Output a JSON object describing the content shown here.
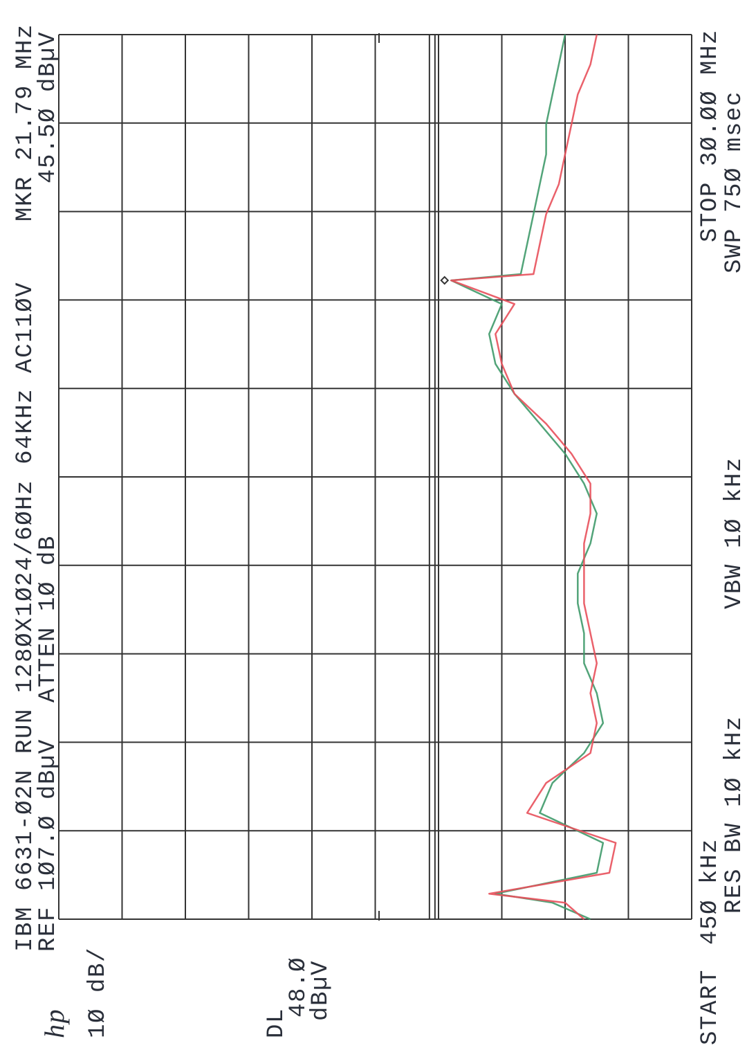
{
  "chart_data": {
    "type": "line",
    "logo": "hp",
    "header": {
      "line1": "IBM 6631-Ø2N RUN 128ØX1Ø24/6ØHz 64KHz AC11ØV",
      "ref": "REF 1Ø7.Ø dBµV",
      "atten": "ATTEN 1Ø dB",
      "scale": "1Ø dB/"
    },
    "marker": {
      "label": "MKR 21.79 MHz",
      "value_label": "45.5Ø dBµV",
      "x": 21.79,
      "value": 45.5
    },
    "display_line": {
      "label": "DL",
      "value_label": "48.Ø",
      "unit": "dBµV",
      "value": 48
    },
    "footer": {
      "start": "START",
      "start_value": "45Ø kHz",
      "stop": "STOP 3Ø.ØØ MHz",
      "res_bw": "RES BW 1Ø kHz",
      "vbw": "VBW 1Ø kHz",
      "sweep": "SWP 75Ø msec"
    },
    "xlim": [
      0.45,
      30
    ],
    "ylim": [
      7,
      107
    ],
    "x": [
      0.45,
      1,
      1.3,
      2,
      3,
      4,
      5,
      6,
      7,
      8,
      9,
      10,
      11,
      12,
      13,
      14,
      15,
      16,
      17,
      18,
      19,
      20,
      21,
      21.79,
      22,
      23,
      24,
      25,
      26,
      27,
      28,
      29,
      30
    ],
    "series": [
      {
        "color": "#3f9a6a",
        "values": [
          23,
          29,
          38,
          22,
          21,
          31,
          29,
          24,
          21,
          22,
          24,
          24,
          25,
          25,
          23,
          22,
          24,
          27,
          31,
          35,
          38,
          39,
          37,
          45,
          34,
          33,
          32,
          31,
          30,
          30,
          29,
          28,
          27
        ]
      },
      {
        "color": "#e8505b",
        "values": [
          24,
          27,
          39,
          20,
          19,
          33,
          30,
          23,
          22,
          23,
          22,
          23,
          24,
          24,
          24,
          23,
          23,
          26,
          30,
          35,
          37,
          38,
          35,
          45,
          32,
          31,
          30,
          28,
          27,
          26,
          25,
          23,
          22
        ]
      }
    ]
  }
}
